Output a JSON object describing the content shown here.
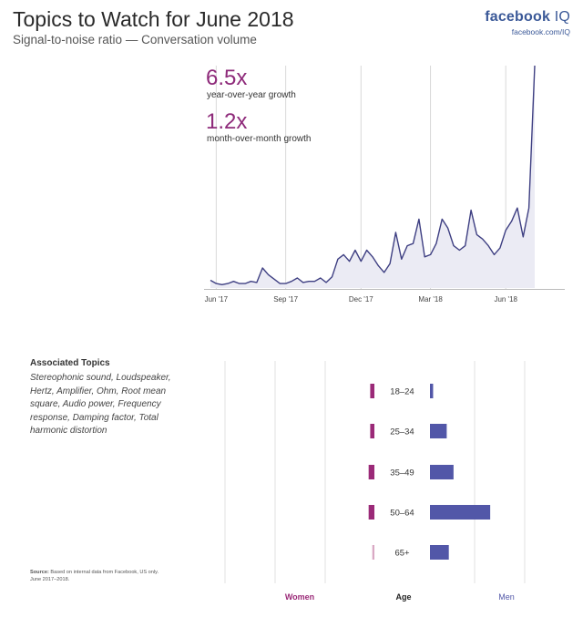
{
  "header": {
    "title": "Topics to Watch for June 2018",
    "subtitle": "Signal-to-noise ratio — Conversation volume",
    "brand_name": "facebook",
    "brand_suffix": "IQ",
    "brand_url": "facebook.com/IQ"
  },
  "stats": {
    "yoy_value": "6.5x",
    "yoy_label": "year-over-year growth",
    "mom_value": "1.2x",
    "mom_label": "month-over-month growth"
  },
  "associated": {
    "heading": "Associated Topics",
    "topics": "Stereophonic sound, Loudspeaker, Hertz, Amplifier, Ohm, Root mean square, Audio power, Frequency response, Damping factor, Total harmonic distortion"
  },
  "source": {
    "label": "Source:",
    "text": "Based on internal data from Facebook, US only.",
    "period": "June 2017–2018."
  },
  "colors": {
    "line": "#3e3f82",
    "area": "#ebebf4",
    "women": "#9b2a78",
    "women_light": "#d9a9c4",
    "men": "#5257a8",
    "grid": "#d8d8d8"
  },
  "chart_data": [
    {
      "type": "area",
      "title": "",
      "xlabel": "",
      "ylabel": "",
      "x_ticks": [
        "Jun '17",
        "Sep '17",
        "Dec '17",
        "Mar '18",
        "Jun '18"
      ],
      "x_tick_positions": [
        1,
        13,
        26,
        38,
        51
      ],
      "grid": "vertical",
      "series": [
        {
          "values": [
            3.5,
            2,
            1.5,
            2,
            3,
            2,
            2,
            3,
            2.5,
            9,
            6,
            4,
            2,
            2,
            3,
            4.5,
            2.5,
            3,
            3,
            4.5,
            2.5,
            5,
            13,
            15,
            12,
            17,
            12,
            17,
            14,
            10,
            7,
            11,
            25,
            13,
            19,
            20,
            31,
            14,
            15,
            20,
            31,
            27,
            19,
            17,
            19,
            35,
            24,
            22,
            19,
            15,
            18,
            26,
            30,
            36,
            23,
            36,
            100
          ]
        }
      ]
    },
    {
      "type": "bar",
      "title": "",
      "categories": [
        "18–24",
        "25–34",
        "35–49",
        "50–64",
        "65+"
      ],
      "series": [
        {
          "name": "Women",
          "values": [
            0.8,
            0.8,
            1.1,
            1.1,
            0.4
          ]
        },
        {
          "name": "Men",
          "values": [
            0.6,
            3.2,
            4.5,
            11.5,
            3.6
          ]
        }
      ],
      "xlabel": "Age"
    }
  ]
}
